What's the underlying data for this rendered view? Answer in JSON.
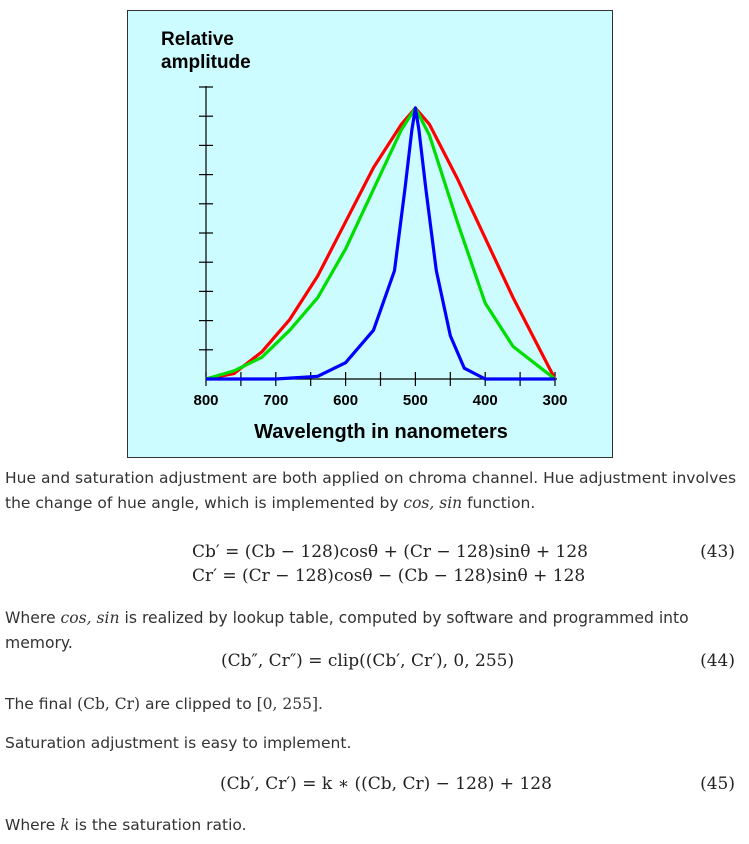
{
  "figure": {
    "title_line1": "Relative",
    "title_line2": "amplitude",
    "xlabel": "Wavelength in nanometers"
  },
  "chart_data": {
    "type": "line",
    "title": "Relative amplitude",
    "xlabel": "Wavelength in nanometers",
    "x_ticks": [
      800,
      700,
      600,
      500,
      400,
      300
    ],
    "xlim": [
      800,
      300
    ],
    "ylim": [
      0,
      1
    ],
    "series": [
      {
        "color": "#ff0000",
        "x": [
          800,
          760,
          720,
          680,
          640,
          600,
          560,
          520,
          500,
          480,
          440,
          400,
          360,
          320,
          300
        ],
        "y": [
          0.0,
          0.02,
          0.1,
          0.22,
          0.38,
          0.58,
          0.78,
          0.94,
          1.0,
          0.94,
          0.74,
          0.52,
          0.3,
          0.1,
          0.0
        ]
      },
      {
        "color": "#00dd00",
        "x": [
          800,
          760,
          720,
          680,
          640,
          600,
          560,
          520,
          500,
          480,
          440,
          400,
          360,
          320,
          300
        ],
        "y": [
          0.0,
          0.03,
          0.08,
          0.18,
          0.3,
          0.48,
          0.7,
          0.92,
          1.0,
          0.9,
          0.58,
          0.28,
          0.12,
          0.04,
          0.0
        ]
      },
      {
        "color": "#0000ff",
        "x": [
          800,
          700,
          640,
          600,
          560,
          530,
          515,
          505,
          500,
          495,
          485,
          470,
          450,
          430,
          400,
          360,
          300
        ],
        "y": [
          0.0,
          0.0,
          0.01,
          0.06,
          0.18,
          0.4,
          0.7,
          0.92,
          1.0,
          0.92,
          0.7,
          0.4,
          0.16,
          0.04,
          0.0,
          0.0,
          0.0
        ]
      }
    ]
  },
  "text": {
    "p1a": "Hue and saturation adjustment are both applied on chroma channel. Hue adjustment involves",
    "p1b": "the change of hue angle, which is implemented by ",
    "p1c": "cos, sin",
    "p1d": " function.",
    "eq43a": "Cb′ = (Cb − 128)cosθ + (Cr − 128)sinθ + 128",
    "eq43b": "Cr′ = (Cr − 128)cosθ − (Cb − 128)sinθ + 128",
    "eq43n": "(43)",
    "p2a": "Where ",
    "p2b": "cos, sin",
    "p2c": " is realized by lookup table, computed by software and programmed into memory.",
    "eq44": "(Cb″, Cr″) = clip((Cb′, Cr′), 0, 255)",
    "eq44n": "(44)",
    "p3a": "The final ",
    "p3b": "(Cb, Cr)",
    "p3c": " are clipped to ",
    "p3d": "[0, 255]",
    "p3e": ".",
    "p4": "Saturation adjustment is easy to implement.",
    "eq45": "(Cb′, Cr′) = k ∗ ((Cb, Cr) − 128) + 128",
    "eq45n": "(45)",
    "p5a": "Where ",
    "p5b": "k",
    "p5c": " is the saturation ratio."
  }
}
